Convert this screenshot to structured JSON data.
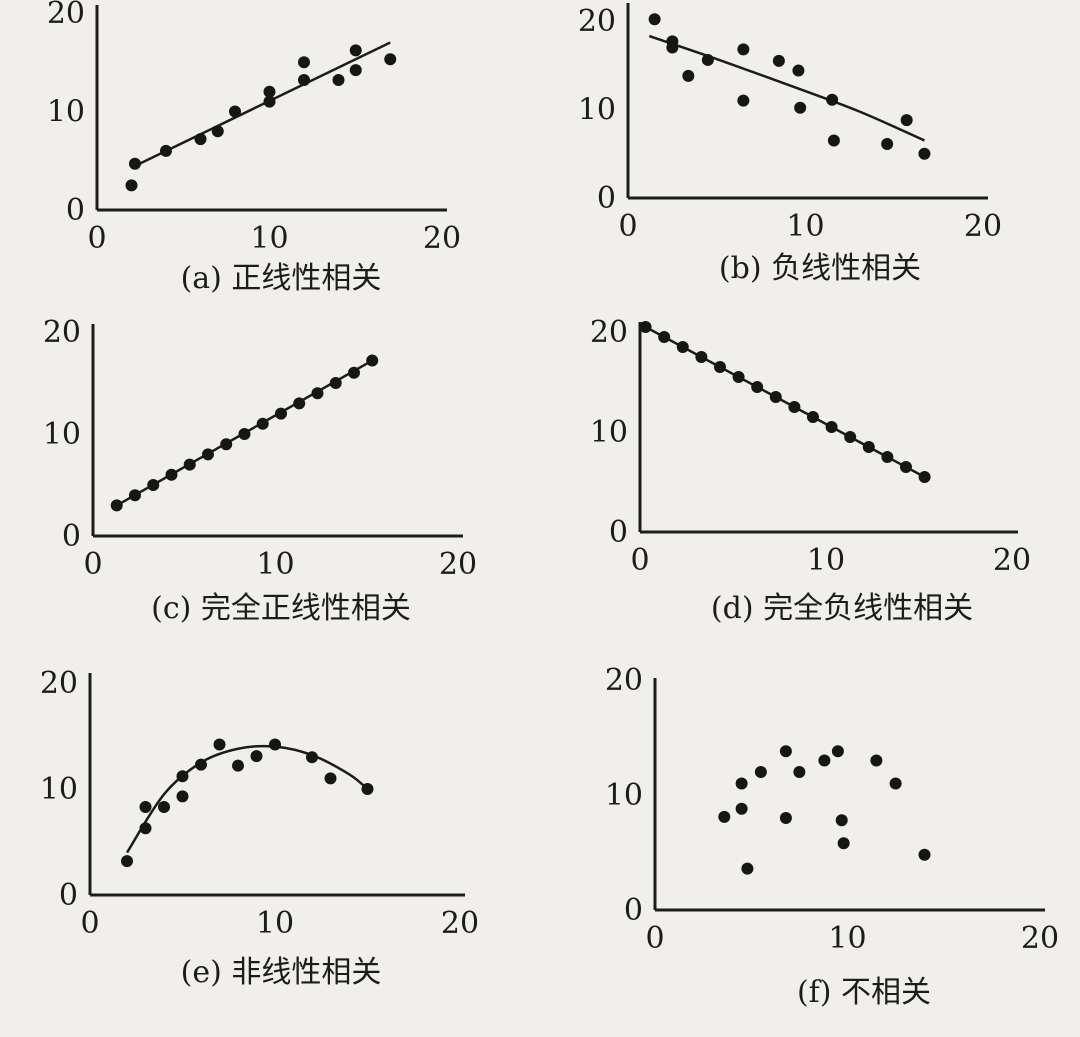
{
  "chart_data": [
    {
      "type": "scatter",
      "caption": "(a) 正线性相关",
      "xlim": [
        0,
        20
      ],
      "ylim": [
        0,
        20
      ],
      "x_ticks": [
        "0",
        "10",
        "20"
      ],
      "y_ticks": [
        "0",
        "10",
        "20"
      ],
      "points": [
        [
          2,
          2.5
        ],
        [
          2.2,
          4.7
        ],
        [
          4,
          6
        ],
        [
          6,
          7.2
        ],
        [
          7,
          8
        ],
        [
          8,
          10
        ],
        [
          10,
          11
        ],
        [
          10,
          12
        ],
        [
          12,
          13.2
        ],
        [
          12,
          15
        ],
        [
          14,
          13.2
        ],
        [
          15,
          14.2
        ],
        [
          15,
          16.2
        ],
        [
          17,
          15.3
        ]
      ],
      "fit": {
        "kind": "line",
        "x": [
          2,
          17
        ],
        "y": [
          4.3,
          17
        ]
      }
    },
    {
      "type": "scatter",
      "caption": "(b) 负线性相关",
      "xlim": [
        0,
        20
      ],
      "ylim": [
        0,
        20
      ],
      "x_ticks": [
        "0",
        "10",
        "20"
      ],
      "y_ticks": [
        "0",
        "10",
        "20"
      ],
      "points": [
        [
          1.5,
          20.2
        ],
        [
          2.5,
          17.7
        ],
        [
          2.5,
          17
        ],
        [
          3.4,
          13.8
        ],
        [
          4.5,
          15.6
        ],
        [
          6.5,
          16.8
        ],
        [
          6.5,
          11
        ],
        [
          8.5,
          15.5
        ],
        [
          9.6,
          14.4
        ],
        [
          9.7,
          10.2
        ],
        [
          11.5,
          11.1
        ],
        [
          11.6,
          6.5
        ],
        [
          14.6,
          6.1
        ],
        [
          15.7,
          8.8
        ],
        [
          16.7,
          5
        ]
      ],
      "fit": {
        "kind": "curve",
        "x": [
          1.2,
          5,
          9,
          13,
          16.7
        ],
        "y": [
          18.3,
          15.7,
          12.8,
          9.8,
          6.5
        ]
      }
    },
    {
      "type": "scatter",
      "caption": "(c) 完全正线性相关",
      "xlim": [
        0,
        20
      ],
      "ylim": [
        0,
        20
      ],
      "x_ticks": [
        "0",
        "10",
        "20"
      ],
      "y_ticks": [
        "0",
        "10",
        "20"
      ],
      "points": [
        [
          1.3,
          3
        ],
        [
          2.3,
          4
        ],
        [
          3.3,
          5
        ],
        [
          4.3,
          6
        ],
        [
          5.3,
          7
        ],
        [
          6.3,
          8
        ],
        [
          7.3,
          9
        ],
        [
          8.3,
          10
        ],
        [
          9.3,
          11
        ],
        [
          10.3,
          12
        ],
        [
          11.3,
          13
        ],
        [
          12.3,
          14
        ],
        [
          13.3,
          15
        ],
        [
          14.3,
          16
        ],
        [
          15.3,
          17.2
        ]
      ],
      "fit": {
        "kind": "line",
        "x": [
          1.3,
          15.3
        ],
        "y": [
          3,
          17.2
        ]
      }
    },
    {
      "type": "scatter",
      "caption": "(d) 完全负线性相关",
      "xlim": [
        0,
        20
      ],
      "ylim": [
        0,
        20
      ],
      "x_ticks": [
        "0",
        "10",
        "20"
      ],
      "y_ticks": [
        "0",
        "10",
        "20"
      ],
      "points": [
        [
          0.3,
          20.5
        ],
        [
          1.3,
          19.5
        ],
        [
          2.3,
          18.5
        ],
        [
          3.3,
          17.5
        ],
        [
          4.3,
          16.5
        ],
        [
          5.3,
          15.5
        ],
        [
          6.3,
          14.5
        ],
        [
          7.3,
          13.5
        ],
        [
          8.3,
          12.5
        ],
        [
          9.3,
          11.5
        ],
        [
          10.3,
          10.5
        ],
        [
          11.3,
          9.5
        ],
        [
          12.3,
          8.5
        ],
        [
          13.3,
          7.5
        ],
        [
          14.3,
          6.5
        ],
        [
          15.3,
          5.5
        ]
      ],
      "fit": {
        "kind": "line",
        "x": [
          0.3,
          15.3
        ],
        "y": [
          20.5,
          5.5
        ]
      }
    },
    {
      "type": "scatter",
      "caption": "(e) 非线性相关",
      "xlim": [
        0,
        20
      ],
      "ylim": [
        0,
        20
      ],
      "x_ticks": [
        "0",
        "10",
        "20"
      ],
      "y_ticks": [
        "0",
        "10",
        "20"
      ],
      "points": [
        [
          2,
          3.2
        ],
        [
          3,
          6.3
        ],
        [
          3,
          8.3
        ],
        [
          4,
          8.3
        ],
        [
          5,
          9.3
        ],
        [
          5,
          11.2
        ],
        [
          6,
          12.3
        ],
        [
          7,
          14.2
        ],
        [
          8,
          12.2
        ],
        [
          9,
          13.1
        ],
        [
          10,
          14.2
        ],
        [
          12,
          13
        ],
        [
          13,
          11
        ],
        [
          15,
          10
        ]
      ],
      "fit": {
        "kind": "curve",
        "x": [
          2,
          4,
          6,
          8,
          10,
          12,
          14,
          15
        ],
        "y": [
          4,
          9.5,
          12.5,
          13.8,
          14,
          13.2,
          11.4,
          10
        ]
      }
    },
    {
      "type": "scatter",
      "caption": "(f) 不相关",
      "xlim": [
        0,
        20
      ],
      "ylim": [
        0,
        20
      ],
      "x_ticks": [
        "0",
        "10",
        "20"
      ],
      "y_ticks": [
        "0",
        "10",
        "20"
      ],
      "points": [
        [
          3.6,
          8.1
        ],
        [
          4.5,
          11
        ],
        [
          4.5,
          8.8
        ],
        [
          4.8,
          3.6
        ],
        [
          5.5,
          12
        ],
        [
          6.8,
          13.8
        ],
        [
          6.8,
          8
        ],
        [
          7.5,
          12
        ],
        [
          8.8,
          13
        ],
        [
          9.5,
          13.8
        ],
        [
          9.7,
          7.8
        ],
        [
          9.8,
          5.8
        ],
        [
          11.5,
          13
        ],
        [
          12.5,
          11
        ],
        [
          14,
          4.8
        ]
      ],
      "fit": null
    }
  ]
}
